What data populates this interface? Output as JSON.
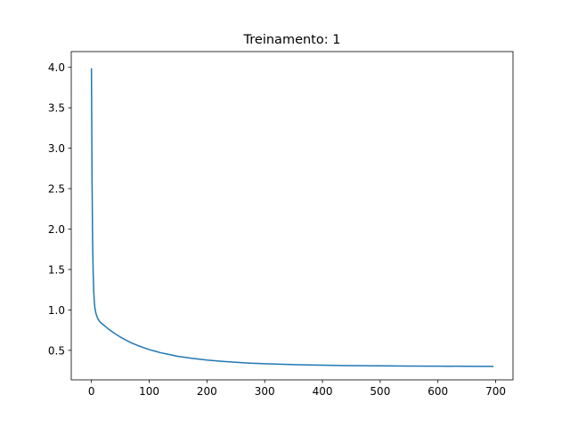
{
  "chart_data": {
    "type": "line",
    "title": "Treinamento: 1",
    "xlabel": "",
    "ylabel": "",
    "xlim": [
      -35,
      730
    ],
    "ylim": [
      0.135,
      4.195
    ],
    "xticks": [
      0,
      100,
      200,
      300,
      400,
      500,
      600,
      700
    ],
    "xtick_labels": [
      "0",
      "100",
      "200",
      "300",
      "400",
      "500",
      "600",
      "700"
    ],
    "yticks": [
      0.5,
      1.0,
      1.5,
      2.0,
      2.5,
      3.0,
      3.5,
      4.0
    ],
    "ytick_labels": [
      "0.5",
      "1.0",
      "1.5",
      "2.0",
      "2.5",
      "3.0",
      "3.5",
      "4.0"
    ],
    "grid": false,
    "legend": false,
    "line_color": "#1f77b4",
    "series": [
      {
        "x": [
          0,
          1,
          2,
          3,
          4,
          5,
          6,
          8,
          10,
          12,
          15,
          20,
          25,
          30,
          40,
          50,
          60,
          70,
          80,
          90,
          100,
          110,
          120,
          130,
          140,
          150,
          175,
          200,
          225,
          250,
          275,
          300,
          325,
          350,
          375,
          400,
          450,
          500,
          550,
          600,
          650,
          695
        ],
        "y": [
          3.98,
          2.6,
          1.85,
          1.45,
          1.22,
          1.1,
          1.02,
          0.95,
          0.91,
          0.88,
          0.85,
          0.82,
          0.79,
          0.76,
          0.71,
          0.665,
          0.625,
          0.59,
          0.56,
          0.535,
          0.51,
          0.49,
          0.47,
          0.455,
          0.44,
          0.425,
          0.4,
          0.38,
          0.365,
          0.352,
          0.342,
          0.335,
          0.329,
          0.324,
          0.32,
          0.316,
          0.311,
          0.308,
          0.306,
          0.304,
          0.303,
          0.302
        ]
      }
    ]
  }
}
